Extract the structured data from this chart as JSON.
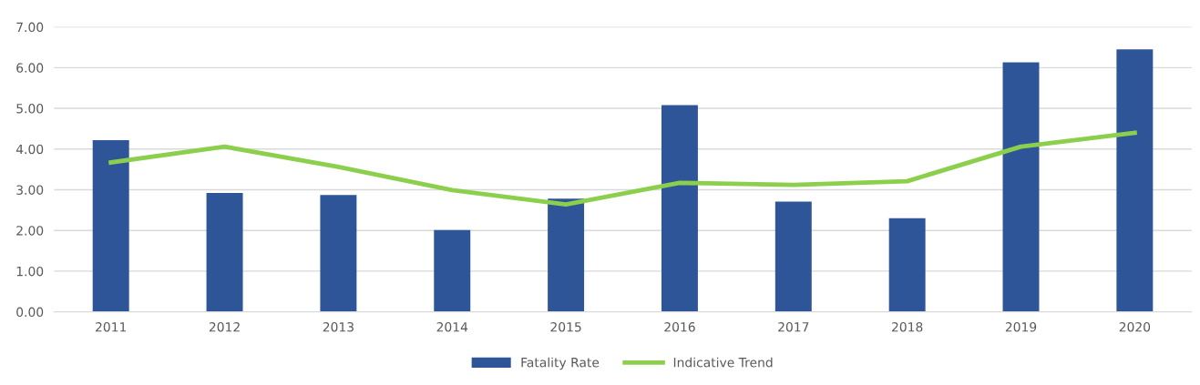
{
  "chart_data": {
    "type": "bar",
    "categories": [
      "2011",
      "2012",
      "2013",
      "2014",
      "2015",
      "2016",
      "2017",
      "2018",
      "2019",
      "2020"
    ],
    "series": [
      {
        "name": "Fatality Rate",
        "color": "#2e5597",
        "values": [
          4.22,
          2.92,
          2.87,
          2.01,
          2.78,
          5.08,
          2.71,
          2.3,
          6.13,
          6.45
        ]
      },
      {
        "name": "Indicative Trend",
        "type": "line",
        "color": "#8ccf4d",
        "values": [
          3.67,
          4.06,
          3.56,
          2.99,
          2.64,
          3.17,
          3.12,
          3.21,
          4.06,
          4.4
        ]
      }
    ],
    "ylim": [
      0,
      7
    ],
    "yticks": [
      {
        "value": 0,
        "label": "0.00"
      },
      {
        "value": 1,
        "label": "1.00"
      },
      {
        "value": 2,
        "label": "2.00"
      },
      {
        "value": 3,
        "label": "3.00"
      },
      {
        "value": 4,
        "label": "4.00"
      },
      {
        "value": 5,
        "label": "5.00"
      },
      {
        "value": 6,
        "label": "6.00"
      },
      {
        "value": 7,
        "label": "7.00"
      }
    ],
    "grid": "y",
    "legend": "bottom",
    "marker": "none",
    "line_style": "solid"
  }
}
